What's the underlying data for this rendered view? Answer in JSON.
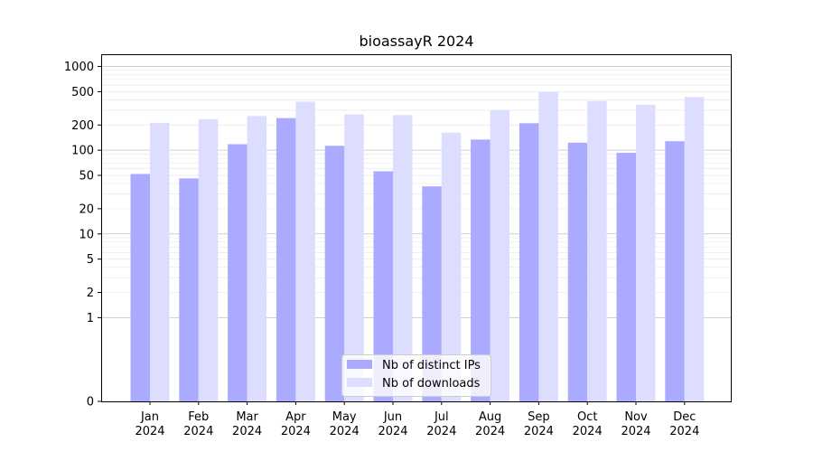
{
  "chart_data": {
    "type": "bar",
    "title": "bioassayR 2024",
    "xlabel": "",
    "ylabel": "",
    "yscale": "symlog",
    "ylim": [
      0,
      1400
    ],
    "yticks": [
      0,
      1,
      2,
      5,
      10,
      20,
      50,
      100,
      200,
      500,
      1000
    ],
    "ytick_labels": [
      "0",
      "1",
      "2",
      "5",
      "10",
      "20",
      "50",
      "100",
      "200",
      "500",
      "1000"
    ],
    "categories": [
      "Jan\n2024",
      "Feb\n2024",
      "Mar\n2024",
      "Apr\n2024",
      "May\n2024",
      "Jun\n2024",
      "Jul\n2024",
      "Aug\n2024",
      "Sep\n2024",
      "Oct\n2024",
      "Nov\n2024",
      "Dec\n2024"
    ],
    "series": [
      {
        "name": "Nb of distinct IPs",
        "color": "#aaaaff",
        "values": [
          52,
          46,
          118,
          242,
          113,
          56,
          37,
          134,
          210,
          123,
          93,
          128
        ]
      },
      {
        "name": "Nb of downloads",
        "color": "#ddddff",
        "values": [
          212,
          235,
          256,
          380,
          268,
          263,
          162,
          300,
          495,
          388,
          350,
          432
        ]
      }
    ],
    "legend_position": "bottom-center",
    "grid": true
  }
}
